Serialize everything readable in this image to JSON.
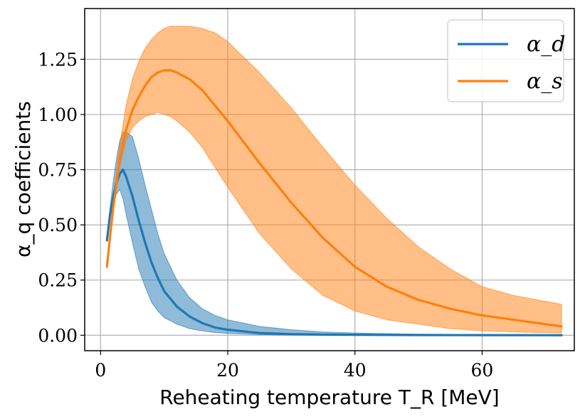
{
  "chart_data": {
    "type": "line",
    "title": "",
    "xlabel": "Reheating temperature T_R [MeV]",
    "ylabel": "α_q coefficients",
    "xlim": [
      -2.5,
      74.5
    ],
    "ylim": [
      -0.07,
      1.48
    ],
    "xticks": [
      0,
      20,
      40,
      60
    ],
    "yticks": [
      0.0,
      0.25,
      0.5,
      0.75,
      1.0,
      1.25
    ],
    "xtick_labels": [
      "0",
      "20",
      "40",
      "60"
    ],
    "ytick_labels": [
      "0.00",
      "0.25",
      "0.50",
      "0.75",
      "1.00",
      "1.25"
    ],
    "grid": true,
    "legend_position": "top-right",
    "series": [
      {
        "name": "α_d",
        "color": "#1f77b4",
        "fill_color": "#1f77b4",
        "x": [
          1.0,
          1.5,
          2.0,
          2.5,
          3.0,
          3.5,
          4.0,
          5.0,
          6.0,
          7.0,
          8.0,
          9.0,
          10.0,
          12.0,
          14.0,
          16.0,
          18.0,
          20.0,
          25.0,
          30.0,
          35.0,
          40.0,
          50.0,
          60.0,
          72.5
        ],
        "y": [
          0.43,
          0.55,
          0.63,
          0.69,
          0.73,
          0.75,
          0.72,
          0.63,
          0.52,
          0.42,
          0.33,
          0.26,
          0.2,
          0.13,
          0.085,
          0.055,
          0.035,
          0.025,
          0.01,
          0.005,
          0.003,
          0.002,
          0.001,
          0.0005,
          0.0002
        ],
        "lower": [
          0.43,
          0.53,
          0.6,
          0.64,
          0.66,
          0.62,
          0.55,
          0.42,
          0.3,
          0.22,
          0.15,
          0.11,
          0.08,
          0.05,
          0.03,
          0.02,
          0.012,
          0.008,
          0.003,
          0.001,
          0.0005,
          0.0003,
          0.0001,
          0.0001,
          0.0
        ],
        "upper": [
          0.43,
          0.58,
          0.7,
          0.8,
          0.88,
          0.92,
          0.92,
          0.9,
          0.8,
          0.68,
          0.57,
          0.46,
          0.37,
          0.25,
          0.17,
          0.12,
          0.09,
          0.07,
          0.04,
          0.025,
          0.015,
          0.01,
          0.005,
          0.003,
          0.002
        ]
      },
      {
        "name": "α_s",
        "color": "#ff7f0e",
        "fill_color": "#ff7f0e",
        "x": [
          1.0,
          1.5,
          2.0,
          3.0,
          4.0,
          5.0,
          6.0,
          7.0,
          8.0,
          9.0,
          10.0,
          11.0,
          12.0,
          14.0,
          16.0,
          18.0,
          20.0,
          25.0,
          30.0,
          35.0,
          40.0,
          45.0,
          50.0,
          55.0,
          60.0,
          65.0,
          72.5
        ],
        "y": [
          0.31,
          0.45,
          0.58,
          0.79,
          0.93,
          1.02,
          1.08,
          1.13,
          1.17,
          1.19,
          1.2,
          1.2,
          1.19,
          1.16,
          1.11,
          1.04,
          0.97,
          0.78,
          0.6,
          0.44,
          0.31,
          0.22,
          0.16,
          0.12,
          0.09,
          0.07,
          0.04
        ],
        "lower": [
          0.31,
          0.44,
          0.56,
          0.76,
          0.88,
          0.94,
          0.97,
          0.99,
          1.0,
          1.01,
          1.0,
          0.99,
          0.97,
          0.92,
          0.85,
          0.76,
          0.67,
          0.46,
          0.3,
          0.18,
          0.11,
          0.07,
          0.05,
          0.03,
          0.02,
          0.015,
          0.01
        ],
        "upper": [
          0.31,
          0.47,
          0.62,
          0.86,
          1.04,
          1.16,
          1.24,
          1.3,
          1.34,
          1.37,
          1.39,
          1.4,
          1.4,
          1.4,
          1.39,
          1.37,
          1.33,
          1.19,
          1.03,
          0.85,
          0.68,
          0.53,
          0.4,
          0.3,
          0.22,
          0.18,
          0.14
        ]
      }
    ]
  }
}
